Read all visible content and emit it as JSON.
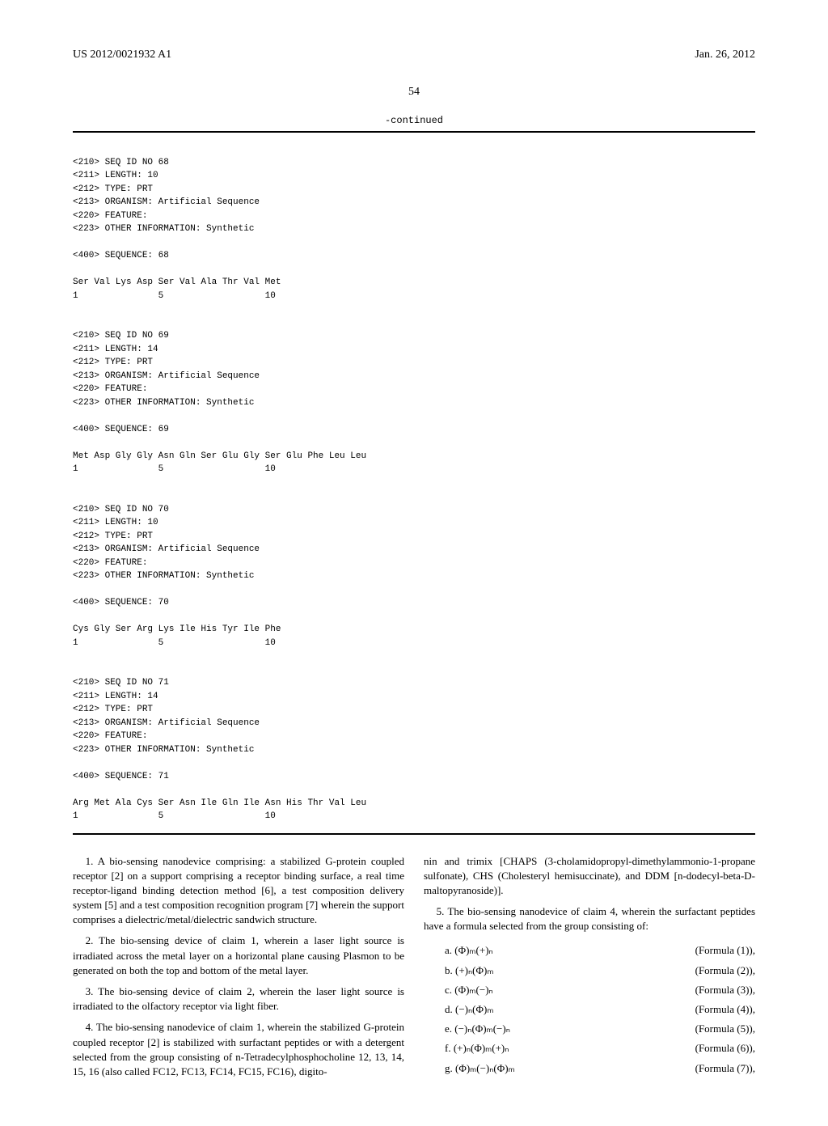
{
  "header": {
    "pub_no": "US 2012/0021932 A1",
    "date": "Jan. 26, 2012",
    "page_no": "54",
    "continued": "-continued"
  },
  "sequences": [
    {
      "id": "68",
      "length": "10",
      "type": "PRT",
      "organism": "Artificial Sequence",
      "feature": "",
      "other_info": "Synthetic",
      "seq_label": "68",
      "residues": "Ser Val Lys Asp Ser Val Ala Thr Val Met",
      "numbers": "1               5                   10"
    },
    {
      "id": "69",
      "length": "14",
      "type": "PRT",
      "organism": "Artificial Sequence",
      "feature": "",
      "other_info": "Synthetic",
      "seq_label": "69",
      "residues": "Met Asp Gly Gly Asn Gln Ser Glu Gly Ser Glu Phe Leu Leu",
      "numbers": "1               5                   10"
    },
    {
      "id": "70",
      "length": "10",
      "type": "PRT",
      "organism": "Artificial Sequence",
      "feature": "",
      "other_info": "Synthetic",
      "seq_label": "70",
      "residues": "Cys Gly Ser Arg Lys Ile His Tyr Ile Phe",
      "numbers": "1               5                   10"
    },
    {
      "id": "71",
      "length": "14",
      "type": "PRT",
      "organism": "Artificial Sequence",
      "feature": "",
      "other_info": "Synthetic",
      "seq_label": "71",
      "residues": "Arg Met Ala Cys Ser Asn Ile Gln Ile Asn His Thr Val Leu",
      "numbers": "1               5                   10"
    }
  ],
  "claims": {
    "c1": "1. A bio-sensing nanodevice comprising: a stabilized G-protein coupled receptor [2] on a support comprising a receptor binding surface, a real time receptor-ligand binding detection method [6], a test composition delivery system [5] and a test composition recognition program [7] wherein the support comprises a dielectric/metal/dielectric sandwich structure.",
    "c2": "2. The bio-sensing device of claim 1, wherein a laser light source is irradiated across the metal layer on a horizontal plane causing Plasmon to be generated on both the top and bottom of the metal layer.",
    "c3": "3. The bio-sensing device of claim 2, wherein the laser light source is irradiated to the olfactory receptor via light fiber.",
    "c4a": "4. The bio-sensing nanodevice of claim 1, wherein the stabilized G-protein coupled receptor [2] is stabilized with surfactant peptides or with a detergent selected from the group consisting of n-Tetradecylphosphocholine 12, 13, 14, 15, 16 (also called FC12, FC13, FC14, FC15, FC16), digito-",
    "c4b": "nin and trimix [CHAPS (3-cholamidopropyl-dimethylammonio-1-propane sulfonate), CHS (Cholesteryl hemisuccinate), and DDM [n-dodecyl-beta-D-maltopyranoside)].",
    "c5": "5. The bio-sensing nanodevice of claim 4, wherein the surfactant peptides have a formula selected from the group consisting of:"
  },
  "formulas": [
    {
      "idx": "a.",
      "expr": "(Φ)ₘ(+)ₙ",
      "label": "(Formula (1)),"
    },
    {
      "idx": "b.",
      "expr": "(+)ₙ(Φ)ₘ",
      "label": "(Formula (2)),"
    },
    {
      "idx": "c.",
      "expr": "(Φ)ₘ(−)ₙ",
      "label": "(Formula (3)),"
    },
    {
      "idx": "d.",
      "expr": "(−)ₙ(Φ)ₘ",
      "label": "(Formula (4)),"
    },
    {
      "idx": "e.",
      "expr": "(−)ₙ(Φ)ₘ(−)ₙ",
      "label": "(Formula (5)),"
    },
    {
      "idx": "f.",
      "expr": "(+)ₙ(Φ)ₘ(+)ₙ",
      "label": "(Formula (6)),"
    },
    {
      "idx": "g.",
      "expr": "(Φ)ₘ(−)ₙ(Φ)ₘ",
      "label": "(Formula (7)),"
    }
  ]
}
